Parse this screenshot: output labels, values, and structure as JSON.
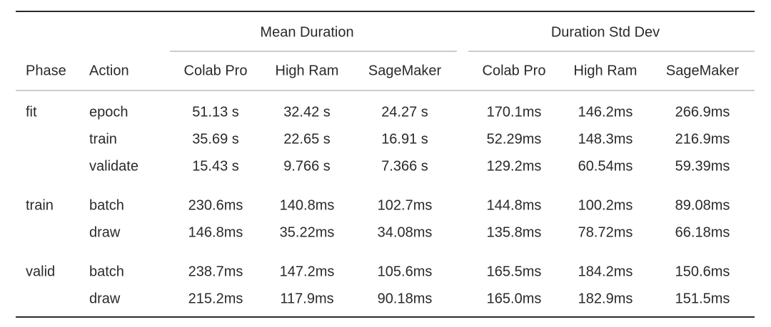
{
  "table": {
    "groups": [
      "Mean Duration",
      "Duration Std Dev"
    ],
    "columns": [
      "Phase",
      "Action",
      "Colab Pro",
      "High Ram",
      "SageMaker",
      "Colab Pro",
      "High Ram",
      "SageMaker"
    ],
    "sections": [
      {
        "phase": "fit",
        "rows": [
          {
            "action": "epoch",
            "values": [
              "51.13 s",
              "32.42 s",
              "24.27 s",
              "170.1ms",
              "146.2ms",
              "266.9ms"
            ]
          },
          {
            "action": "train",
            "values": [
              "35.69 s",
              "22.65 s",
              "16.91 s",
              "52.29ms",
              "148.3ms",
              "216.9ms"
            ]
          },
          {
            "action": "validate",
            "values": [
              "15.43 s",
              "9.766 s",
              "7.366 s",
              "129.2ms",
              "60.54ms",
              "59.39ms"
            ]
          }
        ]
      },
      {
        "phase": "train",
        "rows": [
          {
            "action": "batch",
            "values": [
              "230.6ms",
              "140.8ms",
              "102.7ms",
              "144.8ms",
              "100.2ms",
              "89.08ms"
            ]
          },
          {
            "action": "draw",
            "values": [
              "146.8ms",
              "35.22ms",
              "34.08ms",
              "135.8ms",
              "78.72ms",
              "66.18ms"
            ]
          }
        ]
      },
      {
        "phase": "valid",
        "rows": [
          {
            "action": "batch",
            "values": [
              "238.7ms",
              "147.2ms",
              "105.6ms",
              "165.5ms",
              "184.2ms",
              "150.6ms"
            ]
          },
          {
            "action": "draw",
            "values": [
              "215.2ms",
              "117.9ms",
              "90.18ms",
              "165.0ms",
              "182.9ms",
              "151.5ms"
            ]
          }
        ]
      }
    ]
  }
}
